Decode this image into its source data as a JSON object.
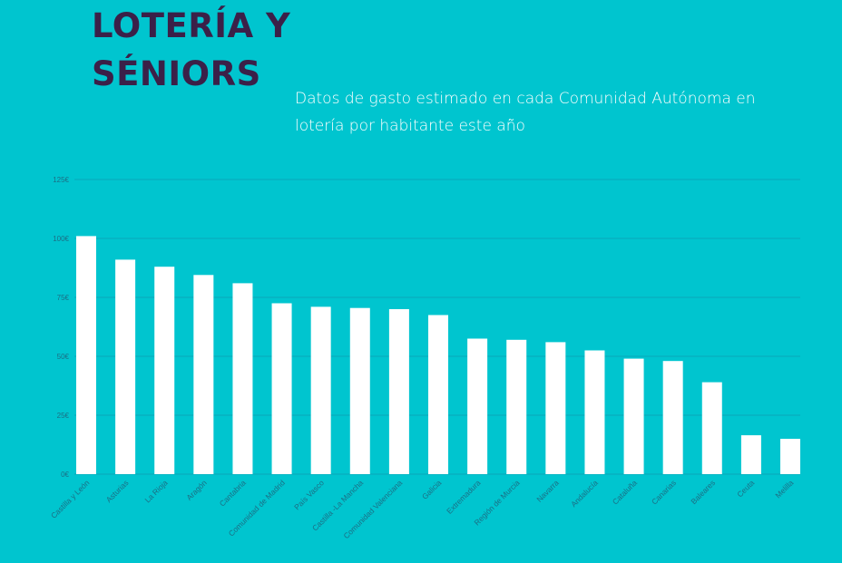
{
  "chart_data": {
    "type": "bar",
    "title": "LOTERÍA Y SÉNIORS",
    "subtitle": "Datos de gasto estimado en cada Comunidad Autónoma en lotería por habitante este año",
    "xlabel": "",
    "ylabel": "",
    "ylim": [
      0,
      125
    ],
    "yticks": [
      0,
      25,
      50,
      75,
      100,
      125
    ],
    "ytick_labels": [
      "0€",
      "25€",
      "50€",
      "75€",
      "100€",
      "125€"
    ],
    "grid": true,
    "categories": [
      "Castilla y León",
      "Asturias",
      "La Rioja",
      "Aragón",
      "Cantabria",
      "Comunidad de Madrid",
      "País Vasco",
      "Castilla -La Mancha",
      "Comunidad Valenciana",
      "Galicia",
      "Extremadura",
      "Región de Murcia",
      "Navarra",
      "Andalucía",
      "Cataluña",
      "Canarias",
      "Baleares",
      "Ceuta",
      "Melilla"
    ],
    "values": [
      101,
      91,
      88,
      84.5,
      81,
      72.5,
      71,
      70.5,
      70,
      67.5,
      57.5,
      57,
      56,
      52.5,
      49,
      48,
      39,
      16.5,
      15
    ],
    "colors": {
      "background": "#00c5cf",
      "bar": "#ffffff",
      "grid": "#0aa8b8",
      "title": "#3b2048",
      "tick": "#1b6f85"
    }
  }
}
